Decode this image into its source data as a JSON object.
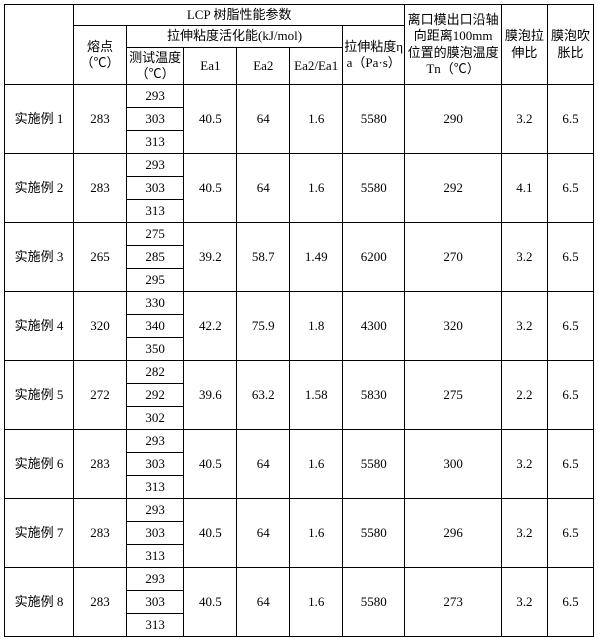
{
  "header": {
    "lcp_group": "LCP 树脂性能参数",
    "act_energy_group": "拉伸粘度活化能(kJ/mol)",
    "melting_point": "熔点（℃）",
    "test_temp": "测试温度（℃）",
    "ea1": "Ea1",
    "ea2": "Ea2",
    "ea_ratio": "Ea2/Ea1",
    "elong_visc": "拉伸粘度ηa（Pa·s）",
    "tn": "离口模出口沿轴向距离100mm 位置的膜泡温度 Tn（℃）",
    "stretch_ratio": "膜泡拉伸比",
    "blow_ratio": "膜泡吹胀比"
  },
  "rows": [
    {
      "label": "实施例 1",
      "mp": "283",
      "temps": [
        "293",
        "303",
        "313"
      ],
      "ea1": "40.5",
      "ea2": "64",
      "ear": "1.6",
      "visc": "5580",
      "tn": "290",
      "r1": "3.2",
      "r2": "6.5"
    },
    {
      "label": "实施例 2",
      "mp": "283",
      "temps": [
        "293",
        "303",
        "313"
      ],
      "ea1": "40.5",
      "ea2": "64",
      "ear": "1.6",
      "visc": "5580",
      "tn": "292",
      "r1": "4.1",
      "r2": "6.5"
    },
    {
      "label": "实施例 3",
      "mp": "265",
      "temps": [
        "275",
        "285",
        "295"
      ],
      "ea1": "39.2",
      "ea2": "58.7",
      "ear": "1.49",
      "visc": "6200",
      "tn": "270",
      "r1": "3.2",
      "r2": "6.5"
    },
    {
      "label": "实施例 4",
      "mp": "320",
      "temps": [
        "330",
        "340",
        "350"
      ],
      "ea1": "42.2",
      "ea2": "75.9",
      "ear": "1.8",
      "visc": "4300",
      "tn": "320",
      "r1": "3.2",
      "r2": "6.5"
    },
    {
      "label": "实施例 5",
      "mp": "272",
      "temps": [
        "282",
        "292",
        "302"
      ],
      "ea1": "39.6",
      "ea2": "63.2",
      "ear": "1.58",
      "visc": "5830",
      "tn": "275",
      "r1": "2.2",
      "r2": "6.5"
    },
    {
      "label": "实施例 6",
      "mp": "283",
      "temps": [
        "293",
        "303",
        "313"
      ],
      "ea1": "40.5",
      "ea2": "64",
      "ear": "1.6",
      "visc": "5580",
      "tn": "300",
      "r1": "3.2",
      "r2": "6.5"
    },
    {
      "label": "实施例 7",
      "mp": "283",
      "temps": [
        "293",
        "303",
        "313"
      ],
      "ea1": "40.5",
      "ea2": "64",
      "ear": "1.6",
      "visc": "5580",
      "tn": "296",
      "r1": "3.2",
      "r2": "6.5"
    },
    {
      "label": "实施例 8",
      "mp": "283",
      "temps": [
        "293",
        "303",
        "313"
      ],
      "ea1": "40.5",
      "ea2": "64",
      "ear": "1.6",
      "visc": "5580",
      "tn": "273",
      "r1": "3.2",
      "r2": "6.5"
    }
  ]
}
